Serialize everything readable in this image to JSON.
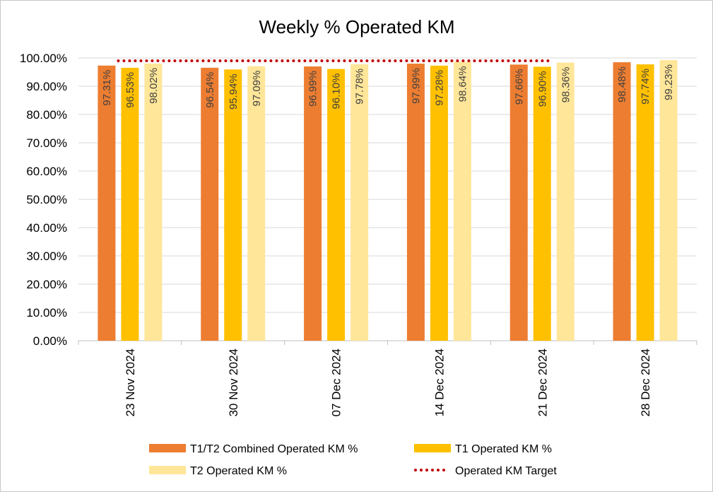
{
  "chart_data": {
    "type": "bar",
    "title": "Weekly % Operated KM",
    "xlabel": "",
    "ylabel": "",
    "categories": [
      "23 Nov 2024",
      "30 Nov 2024",
      "07 Dec 2024",
      "14 Dec 2024",
      "21 Dec 2024",
      "28 Dec 2024"
    ],
    "series": [
      {
        "name": "T1/T2 Combined Operated KM %",
        "color": "#ED7D31",
        "values": [
          97.31,
          96.54,
          96.99,
          97.99,
          97.66,
          98.48
        ],
        "labels": [
          "97.31%",
          "96.54%",
          "96.99%",
          "97.99%",
          "97.66%",
          "98.48%"
        ]
      },
      {
        "name": "T1 Operated KM %",
        "color": "#FFC000",
        "values": [
          96.53,
          95.94,
          96.1,
          97.28,
          96.9,
          97.74
        ],
        "labels": [
          "96.53%",
          "95.94%",
          "96.10%",
          "97.28%",
          "96.90%",
          "97.74%"
        ]
      },
      {
        "name": "T2 Operated KM %",
        "color": "#FFE699",
        "values": [
          98.02,
          97.09,
          97.78,
          98.64,
          98.36,
          99.23
        ],
        "labels": [
          "98.02%",
          "97.09%",
          "97.78%",
          "98.64%",
          "98.36%",
          "99.23%"
        ]
      }
    ],
    "target_line": {
      "name": "Operated KM Target",
      "color": "#C00000",
      "style": "dotted",
      "values": [
        99,
        99,
        99,
        99,
        99,
        null
      ]
    },
    "ylim": [
      0,
      100
    ],
    "yticks": [
      0,
      10,
      20,
      30,
      40,
      50,
      60,
      70,
      80,
      90,
      100
    ],
    "ytick_labels": [
      "0.00%",
      "10.00%",
      "20.00%",
      "30.00%",
      "40.00%",
      "50.00%",
      "60.00%",
      "70.00%",
      "80.00%",
      "90.00%",
      "100.00%"
    ],
    "grid": true,
    "legend": {
      "position": "bottom",
      "entries": [
        "T1/T2 Combined Operated KM %",
        "T1 Operated KM %",
        "T2 Operated KM %",
        "Operated KM Target"
      ]
    },
    "colors": {
      "grid": "#d9d9d9",
      "axis": "#bfbfbf",
      "target": "#C00000"
    }
  }
}
